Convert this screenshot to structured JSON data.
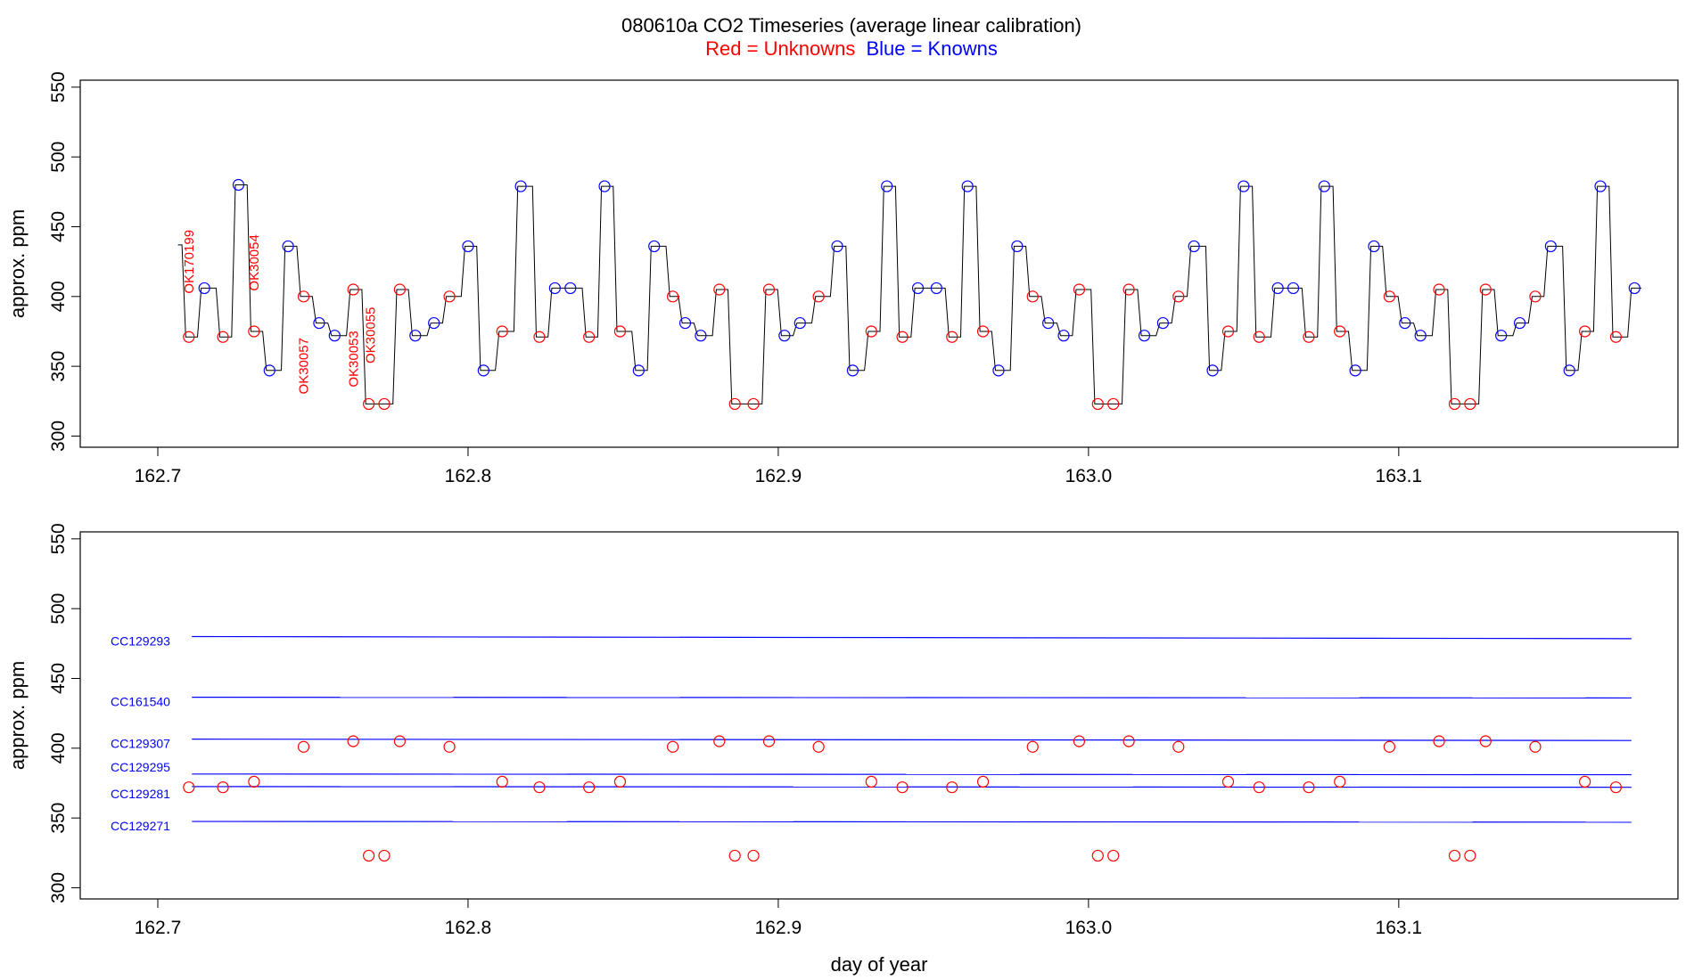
{
  "title": "080610a   CO2 Timeseries (average linear calibration)",
  "legend": {
    "red_label": "Red = Unknowns",
    "blue_label": "Blue = Knowns",
    "red_color": "#ff0000",
    "blue_color": "#0000ff"
  },
  "chart_data": [
    {
      "type": "line",
      "panel": "top",
      "ylabel": "approx. ppm",
      "xlim": [
        162.675,
        163.19
      ],
      "ylim": [
        292,
        555
      ],
      "xticks": [
        162.7,
        162.8,
        162.9,
        163.0,
        163.1
      ],
      "xtick_labels": [
        "162.7",
        "162.8",
        "162.9",
        "163.0",
        "163.1"
      ],
      "yticks": [
        300,
        350,
        400,
        450,
        500,
        550
      ],
      "ytick_labels": [
        "300",
        "350",
        "400",
        "450",
        "500",
        "550"
      ],
      "line_color": "#000000",
      "series": [
        {
          "role": "unknowns",
          "color": "#ff0000",
          "points": [
            [
              162.71,
              371
            ],
            [
              162.721,
              371
            ],
            [
              162.731,
              375
            ],
            [
              162.747,
              400
            ],
            [
              162.763,
              405
            ],
            [
              162.768,
              323
            ],
            [
              162.773,
              323
            ],
            [
              162.778,
              405
            ],
            [
              162.794,
              400
            ],
            [
              162.811,
              375
            ],
            [
              162.823,
              371
            ],
            [
              162.839,
              371
            ],
            [
              162.849,
              375
            ],
            [
              162.866,
              400
            ],
            [
              162.881,
              405
            ],
            [
              162.886,
              323
            ],
            [
              162.892,
              323
            ],
            [
              162.897,
              405
            ],
            [
              162.913,
              400
            ],
            [
              162.93,
              375
            ],
            [
              162.94,
              371
            ],
            [
              162.956,
              371
            ],
            [
              162.966,
              375
            ],
            [
              162.982,
              400
            ],
            [
              162.997,
              405
            ],
            [
              163.003,
              323
            ],
            [
              163.008,
              323
            ],
            [
              163.013,
              405
            ],
            [
              163.029,
              400
            ],
            [
              163.045,
              375
            ],
            [
              163.055,
              371
            ],
            [
              163.071,
              371
            ],
            [
              163.081,
              375
            ],
            [
              163.097,
              400
            ],
            [
              163.113,
              405
            ],
            [
              163.118,
              323
            ],
            [
              163.123,
              323
            ],
            [
              163.128,
              405
            ],
            [
              163.144,
              400
            ],
            [
              163.16,
              375
            ],
            [
              163.17,
              371
            ]
          ]
        },
        {
          "role": "knowns",
          "color": "#0000ff",
          "points": [
            [
              162.715,
              406
            ],
            [
              162.726,
              480
            ],
            [
              162.736,
              347
            ],
            [
              162.742,
              436
            ],
            [
              162.752,
              381
            ],
            [
              162.757,
              372
            ],
            [
              162.783,
              372
            ],
            [
              162.789,
              381
            ],
            [
              162.8,
              436
            ],
            [
              162.805,
              347
            ],
            [
              162.817,
              479
            ],
            [
              162.828,
              406
            ],
            [
              162.833,
              406
            ],
            [
              162.844,
              479
            ],
            [
              162.855,
              347
            ],
            [
              162.86,
              436
            ],
            [
              162.87,
              381
            ],
            [
              162.875,
              372
            ],
            [
              162.902,
              372
            ],
            [
              162.907,
              381
            ],
            [
              162.919,
              436
            ],
            [
              162.924,
              347
            ],
            [
              162.935,
              479
            ],
            [
              162.945,
              406
            ],
            [
              162.951,
              406
            ],
            [
              162.961,
              479
            ],
            [
              162.971,
              347
            ],
            [
              162.977,
              436
            ],
            [
              162.987,
              381
            ],
            [
              162.992,
              372
            ],
            [
              163.018,
              372
            ],
            [
              163.024,
              381
            ],
            [
              163.034,
              436
            ],
            [
              163.04,
              347
            ],
            [
              163.05,
              479
            ],
            [
              163.061,
              406
            ],
            [
              163.066,
              406
            ],
            [
              163.076,
              479
            ],
            [
              163.086,
              347
            ],
            [
              163.092,
              436
            ],
            [
              163.102,
              381
            ],
            [
              163.107,
              372
            ],
            [
              163.133,
              372
            ],
            [
              163.139,
              381
            ],
            [
              163.149,
              436
            ],
            [
              163.155,
              347
            ],
            [
              163.165,
              479
            ],
            [
              163.176,
              406
            ]
          ]
        }
      ],
      "annotations": [
        {
          "text": "OK170199",
          "x": 162.7115,
          "y": 402,
          "rotation": -90,
          "color": "#ff0000"
        },
        {
          "text": "OK30054",
          "x": 162.7325,
          "y": 404,
          "rotation": -90,
          "color": "#ff0000"
        },
        {
          "text": "OK30057",
          "x": 162.7485,
          "y": 330,
          "rotation": -90,
          "color": "#ff0000"
        },
        {
          "text": "OK30053",
          "x": 162.7645,
          "y": 335,
          "rotation": -90,
          "color": "#ff0000"
        },
        {
          "text": "OK30055",
          "x": 162.77,
          "y": 352,
          "rotation": -90,
          "color": "#ff0000"
        }
      ]
    },
    {
      "type": "scatter",
      "panel": "bottom",
      "xlabel": "day of year",
      "ylabel": "approx. ppm",
      "xlim": [
        162.675,
        163.19
      ],
      "ylim": [
        292,
        555
      ],
      "xticks": [
        162.7,
        162.8,
        162.9,
        163.0,
        163.1
      ],
      "xtick_labels": [
        "162.7",
        "162.8",
        "162.9",
        "163.0",
        "163.1"
      ],
      "yticks": [
        300,
        350,
        400,
        450,
        500,
        550
      ],
      "ytick_labels": [
        "300",
        "350",
        "400",
        "450",
        "500",
        "550"
      ],
      "reference_lines": [
        {
          "name": "CC129293",
          "y_start": 480.0,
          "y_end": 478.5,
          "color": "#0000ff"
        },
        {
          "name": "CC161540",
          "y_start": 436.5,
          "y_end": 436.0,
          "color": "#0000ff"
        },
        {
          "name": "CC129307",
          "y_start": 406.5,
          "y_end": 405.5,
          "color": "#0000ff"
        },
        {
          "name": "CC129295",
          "y_start": 381.5,
          "y_end": 381.0,
          "color": "#0000ff"
        },
        {
          "name": "CC129281",
          "y_start": 372.5,
          "y_end": 372.0,
          "color": "#0000ff"
        },
        {
          "name": "CC129271",
          "y_start": 347.5,
          "y_end": 347.0,
          "color": "#0000ff"
        }
      ],
      "reference_x_range": [
        162.711,
        163.175
      ],
      "series": [
        {
          "role": "unknowns",
          "color": "#ff0000",
          "points": [
            [
              162.71,
              372
            ],
            [
              162.721,
              372
            ],
            [
              162.731,
              376
            ],
            [
              162.747,
              401
            ],
            [
              162.763,
              405
            ],
            [
              162.768,
              323
            ],
            [
              162.773,
              323
            ],
            [
              162.778,
              405
            ],
            [
              162.794,
              401
            ],
            [
              162.811,
              376
            ],
            [
              162.823,
              372
            ],
            [
              162.839,
              372
            ],
            [
              162.849,
              376
            ],
            [
              162.866,
              401
            ],
            [
              162.881,
              405
            ],
            [
              162.886,
              323
            ],
            [
              162.892,
              323
            ],
            [
              162.897,
              405
            ],
            [
              162.913,
              401
            ],
            [
              162.93,
              376
            ],
            [
              162.94,
              372
            ],
            [
              162.956,
              372
            ],
            [
              162.966,
              376
            ],
            [
              162.982,
              401
            ],
            [
              162.997,
              405
            ],
            [
              163.003,
              323
            ],
            [
              163.008,
              323
            ],
            [
              163.013,
              405
            ],
            [
              163.029,
              401
            ],
            [
              163.045,
              376
            ],
            [
              163.055,
              372
            ],
            [
              163.071,
              372
            ],
            [
              163.081,
              376
            ],
            [
              163.097,
              401
            ],
            [
              163.113,
              405
            ],
            [
              163.118,
              323
            ],
            [
              163.123,
              323
            ],
            [
              163.128,
              405
            ],
            [
              163.144,
              401
            ],
            [
              163.16,
              376
            ],
            [
              163.17,
              372
            ]
          ]
        }
      ]
    }
  ]
}
